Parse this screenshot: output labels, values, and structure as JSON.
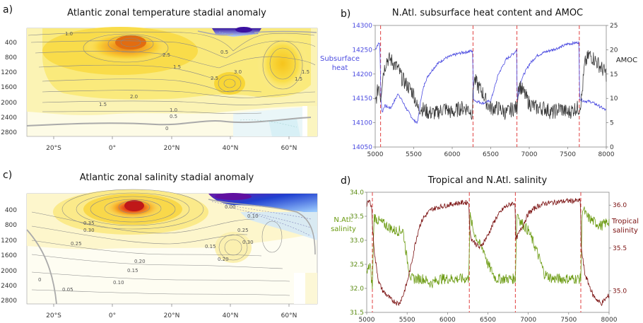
{
  "panels": {
    "a": {
      "letter": "a)",
      "title": "Atlantic zonal temperature stadial anomaly",
      "x_ticks": [
        "20°S",
        "0°",
        "20°N",
        "40°N",
        "60°N"
      ],
      "y_ticks": [
        "400",
        "800",
        "1200",
        "1600",
        "2000",
        "2400",
        "2800"
      ],
      "contour_labels": [
        "1.0",
        "0.5",
        "2.5",
        "1.5",
        "2.5",
        "3.0",
        "2.0",
        "1.5",
        "1.0",
        "0.5",
        "0",
        "1.5",
        "1.5"
      ]
    },
    "b": {
      "letter": "b)",
      "title": "N.Atl. subsurface heat content and AMOC",
      "left_label_line1": "Subsurface",
      "left_label_line2": "heat",
      "right_label": "AMOC",
      "colors": {
        "heat": "#4a4ae0",
        "amoc": "#3a3a3a",
        "events": "#e04040"
      }
    },
    "c": {
      "letter": "c)",
      "title": "Atlantic zonal salinity stadial anomaly",
      "x_ticks": [
        "20°S",
        "0°",
        "20°N",
        "40°N",
        "60°N"
      ],
      "y_ticks": [
        "400",
        "800",
        "1200",
        "1600",
        "2000",
        "2400",
        "2800"
      ],
      "contour_labels": [
        "0.35",
        "0.30",
        "0.25",
        "0.20",
        "0.15",
        "0.10",
        "0.05",
        "0",
        "0.15",
        "0.20",
        "0.25",
        "0.30",
        "0.00",
        "0.10"
      ]
    },
    "d": {
      "letter": "d)",
      "title": "Tropical and N.Atl. salinity",
      "left_label_line1": "N.Atl.",
      "left_label_line2": "salinity",
      "right_label_line1": "Tropical",
      "right_label_line2": "salinity",
      "colors": {
        "natl": "#6a9a10",
        "trop": "#7a1010",
        "events": "#e04040"
      }
    }
  },
  "chart_data": [
    {
      "type": "line",
      "panel": "b",
      "title": "N.Atl. subsurface heat content and AMOC",
      "x_ticks": [
        5000,
        5500,
        6000,
        6500,
        7000,
        7500,
        8000
      ],
      "xlim": [
        5000,
        8000
      ],
      "y_left": {
        "label": "Subsurface heat",
        "ticks": [
          14050,
          14100,
          14150,
          14200,
          14250,
          14300
        ],
        "ylim": [
          14050,
          14300
        ]
      },
      "y_right": {
        "label": "AMOC",
        "ticks": [
          0,
          5,
          10,
          15,
          20,
          25
        ],
        "ylim": [
          0,
          25
        ]
      },
      "event_lines_x": [
        5070,
        6270,
        6840,
        7650
      ],
      "series": [
        {
          "name": "Subsurface heat",
          "axis": "left",
          "x": [
            5000,
            5030,
            5060,
            5075,
            5090,
            5120,
            5200,
            5300,
            5400,
            5500,
            5550,
            5600,
            5650,
            5700,
            5800,
            5900,
            6000,
            6100,
            6200,
            6265,
            6275,
            6300,
            6400,
            6500,
            6600,
            6700,
            6800,
            6835,
            6845,
            6900,
            7000,
            7100,
            7200,
            7300,
            7400,
            7500,
            7600,
            7645,
            7655,
            7700,
            7800,
            7900,
            8000
          ],
          "y": [
            14250,
            14260,
            14265,
            14150,
            14120,
            14135,
            14130,
            14160,
            14130,
            14105,
            14100,
            14155,
            14185,
            14200,
            14220,
            14232,
            14238,
            14243,
            14246,
            14248,
            14150,
            14145,
            14140,
            14145,
            14200,
            14230,
            14243,
            14250,
            14145,
            14190,
            14220,
            14238,
            14245,
            14250,
            14255,
            14262,
            14264,
            14266,
            14150,
            14145,
            14143,
            14135,
            14125
          ]
        },
        {
          "name": "AMOC",
          "axis": "right",
          "x": [
            5000,
            5050,
            5070,
            5100,
            5150,
            5200,
            5250,
            5300,
            5350,
            5400,
            5450,
            5500,
            5550,
            5600,
            5700,
            5800,
            5900,
            6000,
            6100,
            6200,
            6260,
            6280,
            6320,
            6400,
            6450,
            6500,
            6600,
            6700,
            6800,
            6840,
            6860,
            6900,
            7000,
            7100,
            7200,
            7300,
            7400,
            7500,
            7600,
            7650,
            7680,
            7720,
            7780,
            7850,
            7900,
            7950,
            8000
          ],
          "y": [
            9,
            13,
            10,
            15,
            18,
            18,
            17,
            16,
            14,
            13,
            12,
            11,
            8,
            8,
            7,
            7,
            8,
            7,
            8,
            8,
            7,
            14,
            13,
            11,
            9,
            8,
            8,
            7,
            8,
            8,
            13,
            12,
            9,
            8,
            8,
            7,
            8,
            7,
            8,
            8,
            10,
            17,
            19,
            18,
            17,
            16,
            15
          ]
        }
      ]
    },
    {
      "type": "line",
      "panel": "d",
      "title": "Tropical and N.Atl. salinity",
      "x_ticks": [
        5000,
        5500,
        6000,
        6500,
        7000,
        7500,
        8000
      ],
      "xlim": [
        5000,
        8000
      ],
      "y_left": {
        "label": "N.Atl. salinity",
        "ticks": [
          31.5,
          32.0,
          32.5,
          33.0,
          33.5,
          34.0
        ],
        "ylim": [
          31.5,
          34.0
        ]
      },
      "y_right": {
        "label": "Tropical salinity",
        "ticks": [
          35.0,
          35.5,
          36.0
        ],
        "ylim": [
          34.75,
          36.15
        ]
      },
      "event_lines_x": [
        5070,
        6270,
        6840,
        7650
      ],
      "series": [
        {
          "name": "N.Atl. salinity",
          "axis": "left",
          "x": [
            5000,
            5040,
            5070,
            5090,
            5150,
            5250,
            5350,
            5450,
            5500,
            5550,
            5600,
            5700,
            5800,
            5900,
            6000,
            6100,
            6200,
            6260,
            6280,
            6320,
            6400,
            6450,
            6500,
            6600,
            6700,
            6800,
            6840,
            6860,
            6900,
            7000,
            7100,
            7200,
            7300,
            7400,
            7500,
            7600,
            7650,
            7670,
            7720,
            7800,
            7900,
            8000
          ],
          "y": [
            32.3,
            32.5,
            32.0,
            33.5,
            33.4,
            33.3,
            33.2,
            33.2,
            32.6,
            32.2,
            32.2,
            32.2,
            32.1,
            32.2,
            32.2,
            32.2,
            32.2,
            32.2,
            33.5,
            33.2,
            32.9,
            32.8,
            32.5,
            32.2,
            32.2,
            32.2,
            32.2,
            33.6,
            33.4,
            33.2,
            32.8,
            32.3,
            32.2,
            32.2,
            32.2,
            32.2,
            32.2,
            33.7,
            33.5,
            33.4,
            33.3,
            33.4
          ]
        },
        {
          "name": "Tropical salinity",
          "axis": "right",
          "x": [
            5000,
            5030,
            5060,
            5075,
            5100,
            5150,
            5200,
            5300,
            5400,
            5450,
            5500,
            5550,
            5600,
            5650,
            5700,
            5800,
            5900,
            6000,
            6100,
            6200,
            6265,
            6275,
            6300,
            6400,
            6500,
            6600,
            6700,
            6800,
            6835,
            6845,
            6900,
            7000,
            7100,
            7200,
            7300,
            7400,
            7500,
            7600,
            7645,
            7655,
            7700,
            7800,
            7900,
            8000
          ],
          "y": [
            36.0,
            36.05,
            36.0,
            35.7,
            35.4,
            35.1,
            35.0,
            34.9,
            34.85,
            34.95,
            35.1,
            35.3,
            35.55,
            35.75,
            35.85,
            35.95,
            35.98,
            36.0,
            36.02,
            36.03,
            36.03,
            35.7,
            35.6,
            35.5,
            35.65,
            35.85,
            35.97,
            36.02,
            36.03,
            35.6,
            35.7,
            35.9,
            35.98,
            36.02,
            36.03,
            36.04,
            36.05,
            36.05,
            36.05,
            35.5,
            35.2,
            34.95,
            34.85,
            34.95
          ]
        }
      ]
    }
  ]
}
